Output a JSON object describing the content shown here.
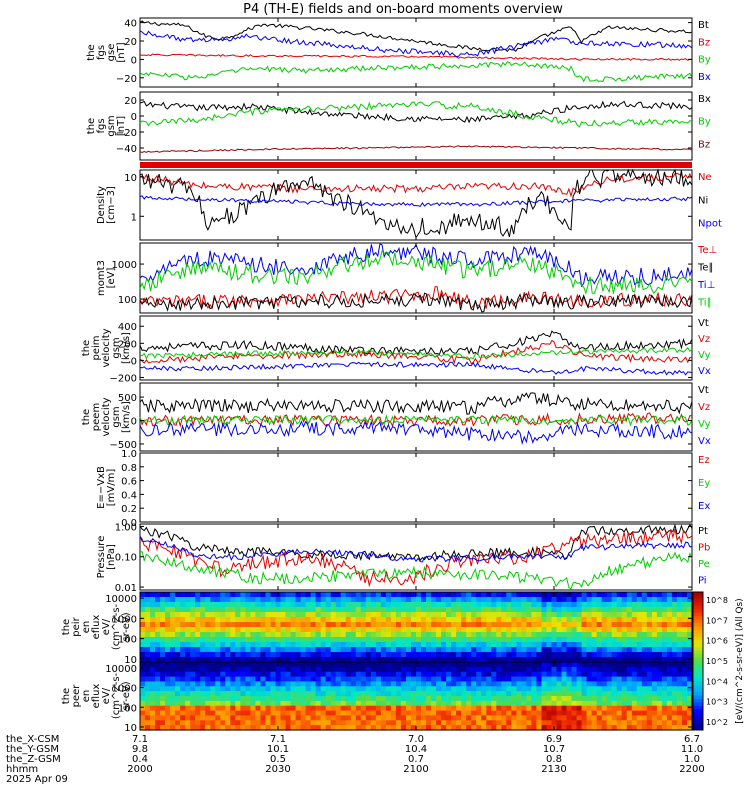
{
  "title": "P4 (TH-E) fields and on-board moments overview",
  "chart_data": {
    "type": "line",
    "title": "P4 (TH-E) fields and on-board moments overview",
    "x_time_ticks": [
      "2000",
      "2030",
      "2100",
      "2130",
      "2200"
    ],
    "ephemeris": {
      "labels": [
        "the_X-CSM",
        "the_Y-GSM",
        "the_Z-GSM",
        "hhmm"
      ],
      "date": "2025 Apr 09",
      "rows": [
        [
          "7.1",
          "7.1",
          "7.0",
          "6.9",
          "6.7"
        ],
        [
          "9.8",
          "10.1",
          "10.4",
          "10.7",
          "11.0"
        ],
        [
          "0.4",
          "0.5",
          "0.7",
          "0.8",
          "1.0"
        ]
      ]
    },
    "panels": [
      {
        "id": "fgs_gse",
        "ylabel_lines": [
          "the",
          "fgs",
          "gse",
          "[nT]"
        ],
        "ylim": [
          -30,
          45
        ],
        "log": false,
        "ticks": [
          {
            "v": 40,
            "t": "40"
          },
          {
            "v": 20,
            "t": "20"
          },
          {
            "v": 0,
            "t": "0"
          },
          {
            "v": -20,
            "t": "−20"
          }
        ],
        "series": [
          {
            "name": "Bt",
            "color": "#000000",
            "x": [
              0,
              0.08,
              0.12,
              0.15,
              0.22,
              0.3,
              0.4,
              0.5,
              0.6,
              0.68,
              0.73,
              0.78,
              0.8,
              0.85,
              0.9,
              1.0
            ],
            "y": [
              40,
              37,
              25,
              22,
              38,
              34,
              28,
              20,
              12,
              10,
              25,
              35,
              20,
              35,
              33,
              30
            ],
            "noise": 2
          },
          {
            "name": "Bz",
            "color": "#e00000",
            "x": [
              0,
              0.2,
              0.5,
              0.8,
              1.0
            ],
            "y": [
              5,
              4,
              3,
              0,
              0
            ],
            "noise": 1
          },
          {
            "name": "By",
            "color": "#00cc00",
            "x": [
              0,
              0.1,
              0.2,
              0.3,
              0.5,
              0.7,
              0.78,
              0.8,
              1.0
            ],
            "y": [
              -15,
              -20,
              -10,
              -12,
              -8,
              -5,
              -10,
              -22,
              -18
            ],
            "noise": 3
          },
          {
            "name": "Bx",
            "color": "#0000ee",
            "x": [
              0,
              0.1,
              0.2,
              0.3,
              0.45,
              0.6,
              0.75,
              0.8,
              1.0
            ],
            "y": [
              30,
              20,
              25,
              18,
              10,
              5,
              22,
              18,
              15
            ],
            "noise": 3
          }
        ]
      },
      {
        "id": "fgs_gsm",
        "ylabel_lines": [
          "the",
          "fgs",
          "gsm",
          "[nT]"
        ],
        "ylim": [
          -55,
          30
        ],
        "log": false,
        "ticks": [
          {
            "v": 20,
            "t": "20"
          },
          {
            "v": 0,
            "t": "0"
          },
          {
            "v": -20,
            "t": "−20"
          },
          {
            "v": -40,
            "t": "−40"
          }
        ],
        "series": [
          {
            "name": "Bx",
            "color": "#000000",
            "x": [
              0,
              0.1,
              0.2,
              0.3,
              0.4,
              0.5,
              0.6,
              0.7,
              0.78,
              0.85,
              1.0
            ],
            "y": [
              15,
              10,
              12,
              5,
              0,
              -3,
              -5,
              0,
              10,
              15,
              12
            ],
            "noise": 4
          },
          {
            "name": "By",
            "color": "#00cc00",
            "x": [
              0,
              0.1,
              0.2,
              0.35,
              0.5,
              0.6,
              0.7,
              0.8,
              0.9,
              1.0
            ],
            "y": [
              -10,
              -5,
              5,
              10,
              15,
              12,
              0,
              -10,
              -8,
              -5
            ],
            "noise": 4
          },
          {
            "name": "Bz",
            "color": "#990000",
            "x": [
              0,
              0.2,
              0.4,
              0.6,
              0.8,
              1.0
            ],
            "y": [
              -45,
              -42,
              -40,
              -38,
              -40,
              -42
            ],
            "noise": 1
          }
        ]
      },
      {
        "id": "density",
        "ylabel_lines": [
          "Density",
          "[cm−3]"
        ],
        "ylim": [
          0.25,
          15
        ],
        "log": true,
        "ticks": [
          {
            "v": 10,
            "t": "10"
          },
          {
            "v": 1,
            "t": "1"
          }
        ],
        "series": [
          {
            "name": "Ne",
            "color": "#e00000",
            "x": [
              0,
              0.1,
              0.3,
              0.5,
              0.7,
              0.78,
              0.85,
              1.0
            ],
            "y": [
              10,
              6,
              5,
              5,
              6,
              4,
              9,
              10
            ],
            "noise": 0.1
          },
          {
            "name": "Ni",
            "color": "#000000",
            "x": [
              0,
              0.08,
              0.12,
              0.2,
              0.3,
              0.35,
              0.42,
              0.5,
              0.55,
              0.6,
              0.68,
              0.72,
              0.78,
              0.8,
              0.85,
              1.0
            ],
            "y": [
              9,
              5,
              0.7,
              1.5,
              8,
              3,
              0.8,
              0.5,
              0.6,
              0.8,
              0.4,
              3,
              0.3,
              8,
              10,
              10
            ],
            "noise": 0.25
          },
          {
            "name": "Npot",
            "color": "#0000ee",
            "x": [
              0,
              0.2,
              0.4,
              0.6,
              0.8,
              1.0
            ],
            "y": [
              3,
              2.5,
              2,
              2,
              2.5,
              2.8
            ],
            "noise": 0.05
          }
        ]
      },
      {
        "id": "mom_temp",
        "ylabel_lines": [
          "momt3",
          "[eV]"
        ],
        "ylim": [
          40,
          4000
        ],
        "log": true,
        "ticks": [
          {
            "v": 1000,
            "t": "1000"
          },
          {
            "v": 100,
            "t": "100"
          }
        ],
        "series": [
          {
            "name": "Te⊥",
            "color": "#e00000",
            "x": [
              0,
              0.15,
              0.3,
              0.45,
              0.55,
              0.6,
              0.7,
              0.8,
              1.0
            ],
            "y": [
              80,
              90,
              100,
              120,
              150,
              70,
              110,
              90,
              100
            ],
            "noise": 0.2
          },
          {
            "name": "Te∥",
            "color": "#000000",
            "x": [
              0,
              0.2,
              0.4,
              0.55,
              0.6,
              0.7,
              0.8,
              1.0
            ],
            "y": [
              70,
              80,
              90,
              100,
              60,
              90,
              80,
              90
            ],
            "noise": 0.2
          },
          {
            "name": "Ti⊥",
            "color": "#0000ee",
            "x": [
              0,
              0.1,
              0.2,
              0.3,
              0.45,
              0.6,
              0.7,
              0.78,
              0.8,
              1.0
            ],
            "y": [
              300,
              1500,
              1000,
              600,
              2500,
              1200,
              2000,
              800,
              400,
              500
            ],
            "noise": 0.25
          },
          {
            "name": "Ti∥",
            "color": "#00cc00",
            "x": [
              0,
              0.1,
              0.2,
              0.3,
              0.45,
              0.6,
              0.7,
              0.8,
              1.0
            ],
            "y": [
              150,
              800,
              500,
              400,
              1500,
              600,
              1000,
              250,
              250
            ],
            "noise": 0.25
          }
        ]
      },
      {
        "id": "peim_velocity",
        "ylabel_lines": [
          "the",
          "peim",
          "velocity",
          "gsm",
          "[km/s]"
        ],
        "ylim": [
          -230,
          520
        ],
        "log": false,
        "ticks": [
          {
            "v": 400,
            "t": "400"
          },
          {
            "v": 200,
            "t": "200"
          },
          {
            "v": 0,
            "t": "0"
          },
          {
            "v": -200,
            "t": "−200"
          }
        ],
        "series": [
          {
            "name": "Vt",
            "color": "#000000",
            "x": [
              0,
              0.2,
              0.4,
              0.6,
              0.75,
              0.8,
              1.0
            ],
            "y": [
              150,
              180,
              120,
              100,
              300,
              150,
              200
            ],
            "noise": 50
          },
          {
            "name": "Vz",
            "color": "#e00000",
            "x": [
              0,
              0.2,
              0.4,
              0.6,
              0.75,
              0.8,
              1.0
            ],
            "y": [
              0,
              50,
              80,
              0,
              200,
              50,
              0
            ],
            "noise": 40
          },
          {
            "name": "Vy",
            "color": "#00cc00",
            "x": [
              0,
              0.2,
              0.4,
              0.6,
              0.8,
              1.0
            ],
            "y": [
              50,
              80,
              100,
              50,
              100,
              120
            ],
            "noise": 30
          },
          {
            "name": "Vx",
            "color": "#0000ee",
            "x": [
              0,
              0.2,
              0.4,
              0.6,
              0.75,
              0.8,
              1.0
            ],
            "y": [
              -100,
              -80,
              -50,
              -50,
              -150,
              -100,
              -150
            ],
            "noise": 30
          }
        ]
      },
      {
        "id": "peem_velocity",
        "ylabel_lines": [
          "the",
          "peem",
          "velocity",
          "gsm",
          "[km/s]"
        ],
        "ylim": [
          -650,
          800
        ],
        "log": false,
        "ticks": [
          {
            "v": 500,
            "t": "500"
          },
          {
            "v": 0,
            "t": "0"
          },
          {
            "v": -500,
            "t": "−500"
          }
        ],
        "series": [
          {
            "name": "Vt",
            "color": "#000000",
            "x": [
              0,
              0.3,
              0.6,
              0.7,
              0.8,
              1.0
            ],
            "y": [
              300,
              320,
              280,
              500,
              350,
              300
            ],
            "noise": 150
          },
          {
            "name": "Vz",
            "color": "#e00000",
            "x": [
              0,
              0.5,
              1.0
            ],
            "y": [
              0,
              0,
              50
            ],
            "noise": 120
          },
          {
            "name": "Vy",
            "color": "#00cc00",
            "x": [
              0,
              0.5,
              1.0
            ],
            "y": [
              0,
              20,
              0
            ],
            "noise": 100
          },
          {
            "name": "Vx",
            "color": "#0000ee",
            "x": [
              0,
              0.5,
              0.6,
              0.7,
              0.8,
              1.0
            ],
            "y": [
              -200,
              -150,
              -300,
              -350,
              -200,
              -250
            ],
            "noise": 150
          }
        ]
      },
      {
        "id": "exb_field",
        "ylabel_lines": [
          "E=−VxB",
          "[mV/m]"
        ],
        "ylim": [
          0,
          1
        ],
        "log": false,
        "ticks": [
          {
            "v": 1.0,
            "t": "1.0"
          },
          {
            "v": 0.8,
            "t": "0.8"
          },
          {
            "v": 0.6,
            "t": "0.6"
          },
          {
            "v": 0.4,
            "t": "0.4"
          },
          {
            "v": 0.2,
            "t": "0.2"
          },
          {
            "v": 0.0,
            "t": "0.0"
          }
        ],
        "legend": [
          {
            "name": "Ez",
            "color": "#e00000"
          },
          {
            "name": "Ey",
            "color": "#00cc00"
          },
          {
            "name": "Ex",
            "color": "#0000ee"
          }
        ],
        "series": []
      },
      {
        "id": "pressure",
        "ylabel_lines": [
          "Pressure",
          "[nPa]"
        ],
        "ylim": [
          0.008,
          1.2
        ],
        "log": true,
        "ticks": [
          {
            "v": 1.0,
            "t": "1.00"
          },
          {
            "v": 0.1,
            "t": "0.10"
          },
          {
            "v": 0.01,
            "t": "0.01"
          }
        ],
        "series": [
          {
            "name": "Pt",
            "color": "#000000",
            "x": [
              0,
              0.1,
              0.2,
              0.3,
              0.5,
              0.7,
              0.78,
              0.8,
              1.0
            ],
            "y": [
              0.8,
              0.2,
              0.15,
              0.12,
              0.1,
              0.15,
              0.1,
              0.7,
              0.8
            ],
            "noise": 0.15
          },
          {
            "name": "Pb",
            "color": "#e00000",
            "x": [
              0,
              0.1,
              0.15,
              0.2,
              0.3,
              0.4,
              0.5,
              0.6,
              0.7,
              0.8,
              1.0
            ],
            "y": [
              0.3,
              0.08,
              0.03,
              0.05,
              0.1,
              0.02,
              0.02,
              0.08,
              0.1,
              0.3,
              0.5
            ],
            "noise": 0.25
          },
          {
            "name": "Pe",
            "color": "#00cc00",
            "x": [
              0,
              0.1,
              0.2,
              0.3,
              0.5,
              0.7,
              0.8,
              1.0
            ],
            "y": [
              0.1,
              0.04,
              0.02,
              0.02,
              0.03,
              0.02,
              0.01,
              0.1
            ],
            "noise": 0.2
          },
          {
            "name": "Pi",
            "color": "#0000ee",
            "x": [
              0,
              0.1,
              0.2,
              0.3,
              0.5,
              0.7,
              0.78,
              0.8,
              1.0
            ],
            "y": [
              0.4,
              0.1,
              0.1,
              0.15,
              0.08,
              0.1,
              0.1,
              0.2,
              0.25
            ],
            "noise": 0.1
          }
        ]
      }
    ],
    "spectrograms": [
      {
        "id": "peir_en_eflux",
        "ylabel_lines": [
          "the",
          "peir",
          "en",
          "eflux",
          "eV/",
          "(cm^2-s-",
          "sr-eV)"
        ],
        "ylim": [
          7,
          20000
        ],
        "log": true,
        "ticks": [
          {
            "v": 10000,
            "t": "10000"
          },
          {
            "v": 1000,
            "t": "1000"
          },
          {
            "v": 100,
            "t": "100"
          },
          {
            "v": 10,
            "t": "10"
          }
        ]
      },
      {
        "id": "peer_en_eflux",
        "ylabel_lines": [
          "the",
          "peer",
          "en",
          "eflux",
          "eV/",
          "(cm^2-s-",
          "sr-eV)"
        ],
        "ylim": [
          7,
          20000
        ],
        "log": true,
        "ticks": [
          {
            "v": 10000,
            "t": "10000"
          },
          {
            "v": 1000,
            "t": "1000"
          },
          {
            "v": 100,
            "t": "100"
          },
          {
            "v": 10,
            "t": "10"
          }
        ]
      }
    ],
    "colorbar": {
      "label": "[eV/(cm^2-s-sr-eV)] (All Qs)",
      "ticks": [
        "10^8",
        "10^7",
        "10^6",
        "10^5",
        "10^4",
        "10^3",
        "10^2"
      ]
    }
  }
}
